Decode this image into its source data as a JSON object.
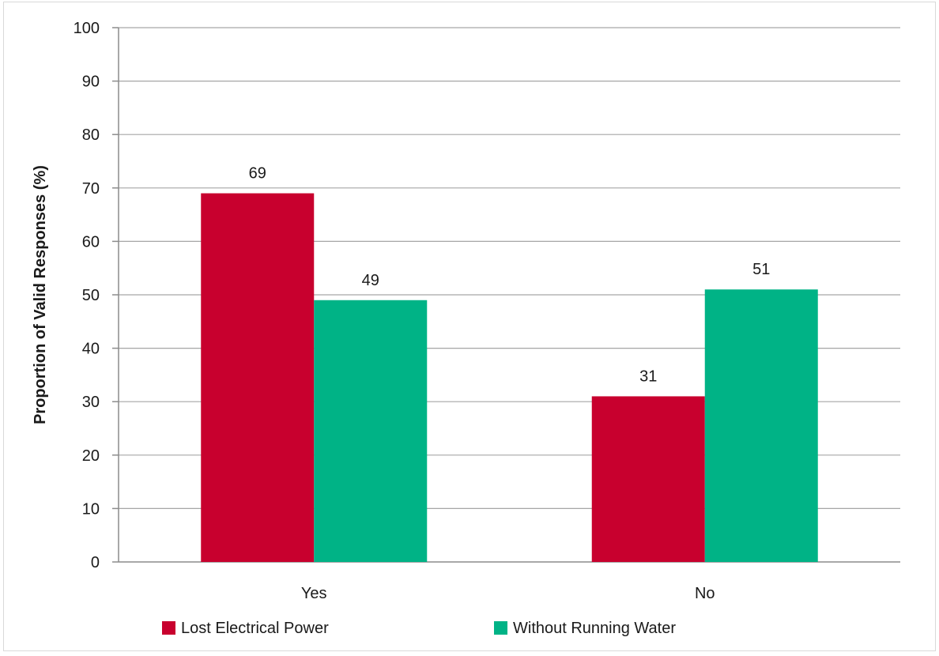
{
  "chart_data": {
    "type": "bar",
    "title": "",
    "xlabel": "",
    "ylabel": "Proportion of Valid Responses (%)",
    "categories": [
      "Yes",
      "No"
    ],
    "series": [
      {
        "name": "Lost Electrical Power",
        "values": [
          69,
          31
        ],
        "color": "#c8002e"
      },
      {
        "name": "Without Running Water",
        "values": [
          49,
          51
        ],
        "color": "#00b386"
      }
    ],
    "ylim": [
      0,
      100
    ],
    "yticks": [
      0,
      10,
      20,
      30,
      40,
      50,
      60,
      70,
      80,
      90,
      100
    ],
    "grid": true,
    "gridline_color": "#a6a6a6",
    "data_labels": true,
    "legend": "bottom"
  }
}
